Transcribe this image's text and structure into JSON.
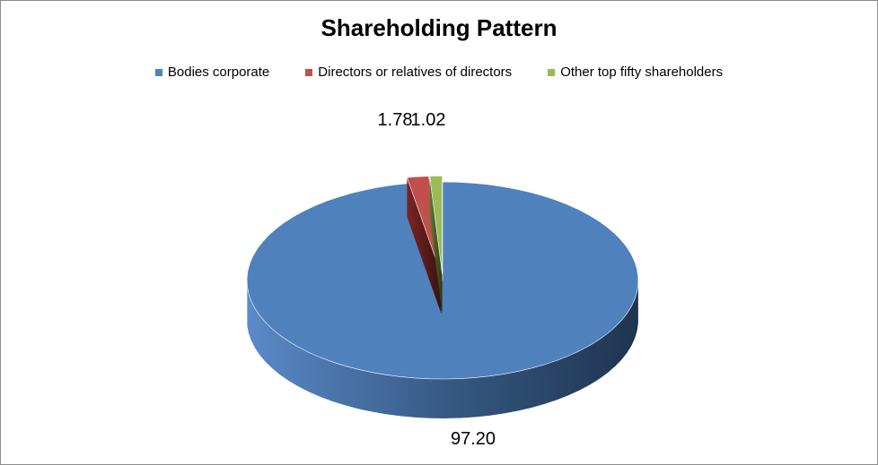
{
  "chart_data": {
    "type": "pie",
    "title": "Shareholding Pattern",
    "categories": [
      "Bodies corporate",
      "Directors or relatives of directors",
      "Other top fifty shareholders"
    ],
    "values": [
      97.2,
      1.78,
      1.02
    ],
    "value_labels": [
      "97.20",
      "1.78",
      "1.02"
    ],
    "colors": [
      "#4f81bd",
      "#c0504d",
      "#9bbb59"
    ],
    "legend_position": "top",
    "style": "3d-exploded"
  }
}
